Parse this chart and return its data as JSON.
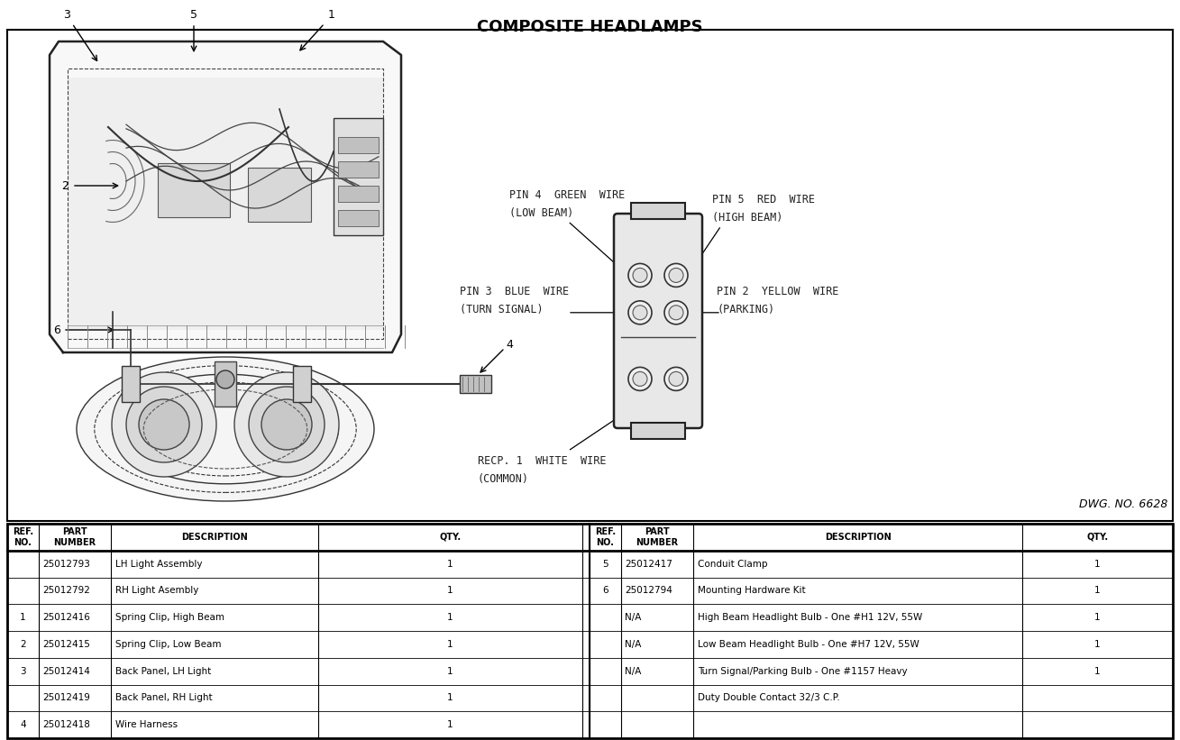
{
  "title": "COMPOSITE HEADLAMPS",
  "dwg_no": "DWG. NO. 6628",
  "bg_color": "#ffffff",
  "line_color": "#000000",
  "title_fontsize": 13,
  "table_rows_left": [
    [
      "",
      "25012793",
      "LH Light Assembly",
      "1"
    ],
    [
      "",
      "25012792",
      "RH Light Asembly",
      "1"
    ],
    [
      "1",
      "25012416",
      "Spring Clip, High Beam",
      "1"
    ],
    [
      "2",
      "25012415",
      "Spring Clip, Low Beam",
      "1"
    ],
    [
      "3",
      "25012414",
      "Back Panel, LH Light",
      "1"
    ],
    [
      "",
      "25012419",
      "Back Panel, RH Light",
      "1"
    ],
    [
      "4",
      "25012418",
      "Wire Harness",
      "1"
    ]
  ],
  "table_rows_right": [
    [
      "5",
      "25012417",
      "Conduit Clamp",
      "1"
    ],
    [
      "6",
      "25012794",
      "Mounting Hardware Kit",
      "1"
    ],
    [
      "",
      "N/A",
      "High Beam Headlight Bulb - One #H1 12V, 55W",
      "1"
    ],
    [
      "",
      "N/A",
      "Low Beam Headlight Bulb - One #H7 12V, 55W",
      "1"
    ],
    [
      "",
      "N/A",
      "Turn Signal/Parking Bulb - One #1157 Heavy",
      "1"
    ],
    [
      "",
      "",
      "Duty Double Contact 32/3 C.P.",
      ""
    ],
    [
      "",
      "",
      "",
      ""
    ]
  ]
}
